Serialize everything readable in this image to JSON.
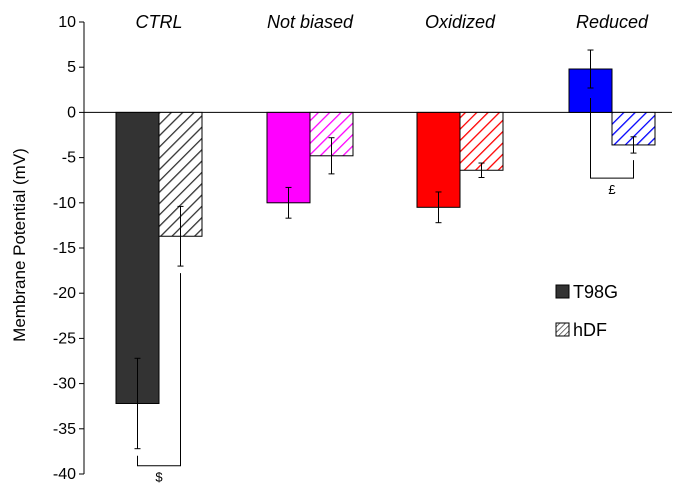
{
  "chart_data": {
    "type": "bar",
    "categories": [
      "CTRL",
      "Not biased",
      "Oxidized",
      "Reduced"
    ],
    "ylabel": "Membrane Potential (mV)",
    "ylim": [
      -40,
      10
    ],
    "yticks": [
      10,
      5,
      0,
      -5,
      -10,
      -15,
      -20,
      -25,
      -30,
      -35,
      -40
    ],
    "grid": false,
    "legend_position": "right",
    "series": [
      {
        "name": "T98G",
        "pattern": "solid",
        "values": [
          -32.2,
          -10.0,
          -10.5,
          4.8
        ],
        "errors": [
          5.0,
          1.7,
          1.7,
          2.1
        ]
      },
      {
        "name": "hDF",
        "pattern": "hatched",
        "values": [
          -13.7,
          -4.8,
          -6.4,
          -3.6
        ],
        "errors": [
          3.3,
          2.0,
          0.8,
          0.9
        ]
      }
    ],
    "bar_colors": [
      [
        "#333333",
        "#ff00ff",
        "#ff0000",
        "#0000ff"
      ],
      [
        "#333333",
        "#ff00ff",
        "#ff0000",
        "#0000ff"
      ]
    ],
    "significance": [
      {
        "category": "CTRL",
        "symbol": "$"
      },
      {
        "category": "Reduced",
        "symbol": "£"
      }
    ]
  }
}
